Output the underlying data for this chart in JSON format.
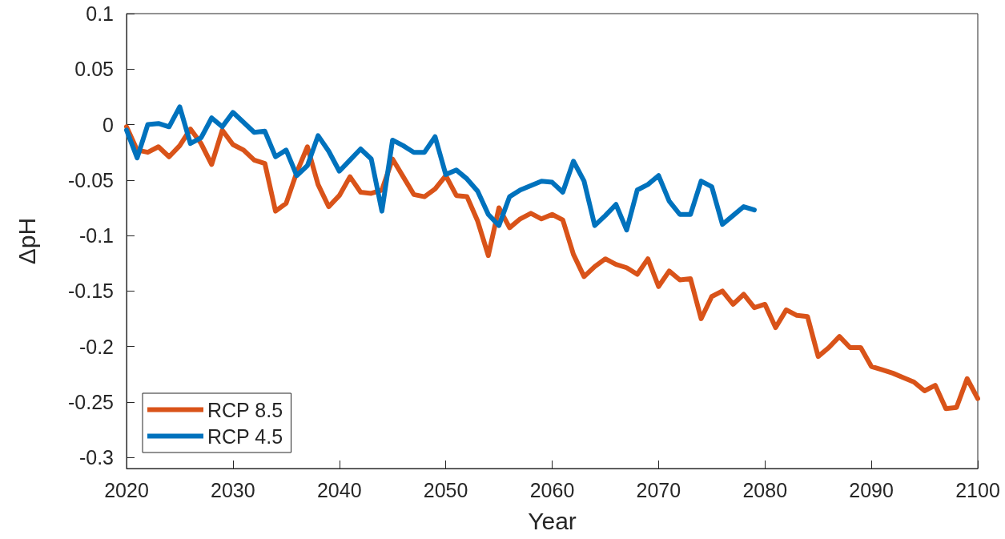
{
  "chart_data": {
    "type": "line",
    "xlabel": "Year",
    "ylabel": "ΔpH",
    "xlim": [
      2020,
      2100
    ],
    "xticks": [
      2020,
      2030,
      2040,
      2050,
      2060,
      2070,
      2080,
      2090,
      2100
    ],
    "ylim": [
      -0.31,
      0.1
    ],
    "yticks": [
      -0.3,
      -0.25,
      -0.2,
      -0.15,
      -0.1,
      -0.05,
      0,
      0.05,
      0.1
    ],
    "grid": false,
    "legend": "bottom left",
    "marker": "none",
    "line_style": "solid",
    "series": [
      {
        "name": "RCP 8.5",
        "color": "#d95319",
        "x": [
          2020,
          2021,
          2022,
          2023,
          2024,
          2025,
          2026,
          2027,
          2028,
          2029,
          2030,
          2031,
          2032,
          2033,
          2034,
          2035,
          2036,
          2037,
          2038,
          2039,
          2040,
          2041,
          2042,
          2043,
          2044,
          2045,
          2046,
          2047,
          2048,
          2049,
          2050,
          2051,
          2052,
          2053,
          2054,
          2055,
          2056,
          2057,
          2058,
          2059,
          2060,
          2061,
          2062,
          2063,
          2064,
          2065,
          2066,
          2067,
          2068,
          2069,
          2070,
          2071,
          2072,
          2073,
          2074,
          2075,
          2076,
          2077,
          2078,
          2079,
          2080,
          2081,
          2082,
          2083,
          2084,
          2085,
          2086,
          2087,
          2088,
          2089,
          2090,
          2091,
          2092,
          2093,
          2094,
          2095,
          2096,
          2097,
          2098,
          2099,
          2100
        ],
        "values": [
          -0.002,
          -0.023,
          -0.025,
          -0.02,
          -0.029,
          -0.019,
          -0.004,
          -0.017,
          -0.036,
          -0.005,
          -0.018,
          -0.023,
          -0.032,
          -0.035,
          -0.078,
          -0.071,
          -0.043,
          -0.02,
          -0.054,
          -0.074,
          -0.064,
          -0.047,
          -0.061,
          -0.062,
          -0.059,
          -0.031,
          -0.047,
          -0.063,
          -0.065,
          -0.058,
          -0.046,
          -0.064,
          -0.065,
          -0.087,
          -0.118,
          -0.075,
          -0.093,
          -0.085,
          -0.08,
          -0.085,
          -0.081,
          -0.086,
          -0.117,
          -0.137,
          -0.128,
          -0.121,
          -0.126,
          -0.129,
          -0.135,
          -0.121,
          -0.146,
          -0.132,
          -0.14,
          -0.139,
          -0.175,
          -0.155,
          -0.15,
          -0.162,
          -0.153,
          -0.165,
          -0.162,
          -0.183,
          -0.167,
          -0.172,
          -0.173,
          -0.209,
          -0.201,
          -0.191,
          -0.201,
          -0.201,
          -0.218,
          -0.221,
          -0.224,
          -0.228,
          -0.232,
          -0.24,
          -0.235,
          -0.256,
          -0.255,
          -0.229,
          -0.247
        ]
      },
      {
        "name": "RCP 4.5",
        "color": "#0072bd",
        "x": [
          2020,
          2021,
          2022,
          2023,
          2024,
          2025,
          2026,
          2027,
          2028,
          2029,
          2030,
          2031,
          2032,
          2033,
          2034,
          2035,
          2036,
          2037,
          2038,
          2039,
          2040,
          2041,
          2042,
          2043,
          2044,
          2045,
          2046,
          2047,
          2048,
          2049,
          2050,
          2051,
          2052,
          2053,
          2054,
          2055,
          2056,
          2057,
          2058,
          2059,
          2060,
          2061,
          2062,
          2063,
          2064,
          2065,
          2066,
          2067,
          2068,
          2069,
          2070,
          2071,
          2072,
          2073,
          2074,
          2075,
          2076,
          2077,
          2078,
          2079
        ],
        "values": [
          -0.005,
          -0.03,
          0,
          0.001,
          -0.002,
          0.016,
          -0.017,
          -0.012,
          0.006,
          -0.002,
          0.011,
          0.002,
          -0.007,
          -0.006,
          -0.029,
          -0.023,
          -0.046,
          -0.037,
          -0.01,
          -0.024,
          -0.042,
          -0.032,
          -0.022,
          -0.031,
          -0.078,
          -0.014,
          -0.019,
          -0.025,
          -0.025,
          -0.011,
          -0.045,
          -0.041,
          -0.049,
          -0.06,
          -0.081,
          -0.091,
          -0.065,
          -0.059,
          -0.055,
          -0.051,
          -0.052,
          -0.061,
          -0.033,
          -0.051,
          -0.091,
          -0.082,
          -0.072,
          -0.095,
          -0.059,
          -0.054,
          -0.046,
          -0.069,
          -0.081,
          -0.081,
          -0.051,
          -0.056,
          -0.09,
          -0.082,
          -0.074,
          -0.077
        ]
      }
    ]
  }
}
